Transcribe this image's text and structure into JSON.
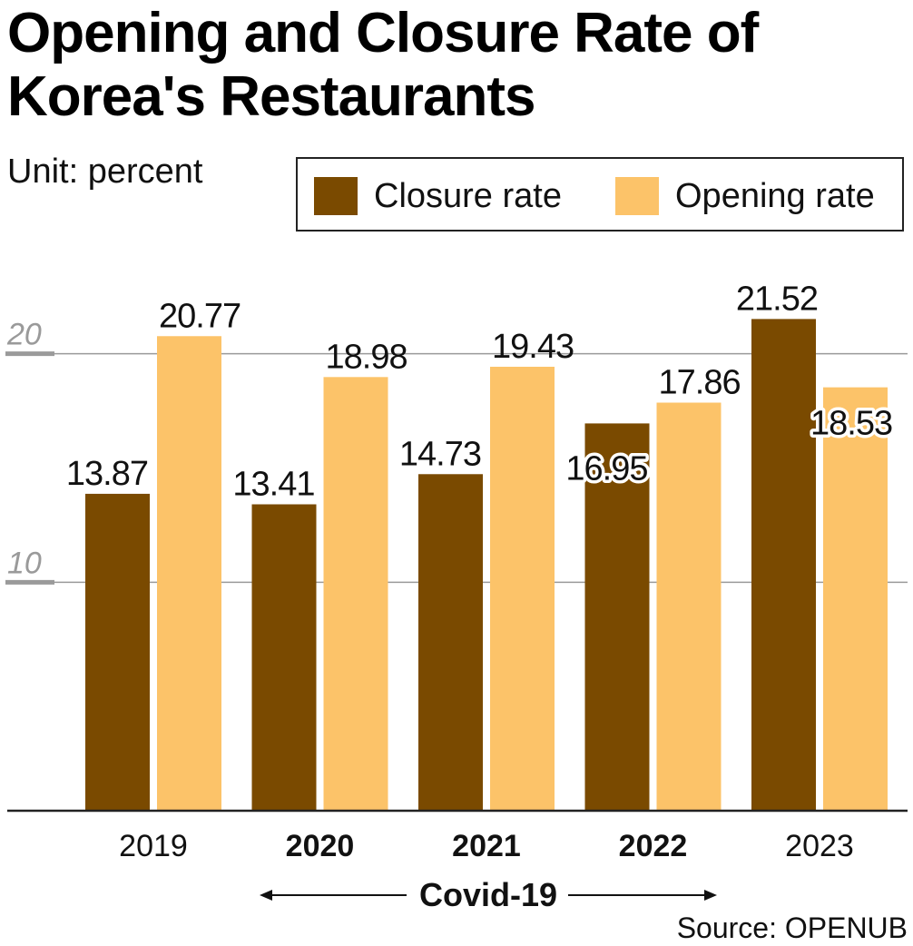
{
  "title_line1": "Opening and Closure Rate of",
  "title_line2": "Korea's Restaurants",
  "unit": "Unit: percent",
  "source": "Source: OPENUB",
  "colors": {
    "closure": "#7a4a00",
    "opening": "#fcc369",
    "grid": "#9a9a9a",
    "axis": "#222222"
  },
  "chart_data": {
    "type": "bar",
    "title": "Opening and Closure Rate of Korea's Restaurants",
    "xlabel": "",
    "ylabel": "percent",
    "categories": [
      "2019",
      "2020",
      "2021",
      "2022",
      "2023"
    ],
    "bold_categories": [
      "2020",
      "2021",
      "2022"
    ],
    "series": [
      {
        "name": "Closure rate",
        "values": [
          13.87,
          13.41,
          14.73,
          16.95,
          21.52
        ]
      },
      {
        "name": "Opening rate",
        "values": [
          20.77,
          18.98,
          19.43,
          17.86,
          18.53
        ]
      }
    ],
    "y_ticks": [
      10,
      20
    ],
    "ylim": [
      0,
      23.8
    ],
    "grid": true,
    "legend": "top-right",
    "annotation": "Covid-19"
  }
}
